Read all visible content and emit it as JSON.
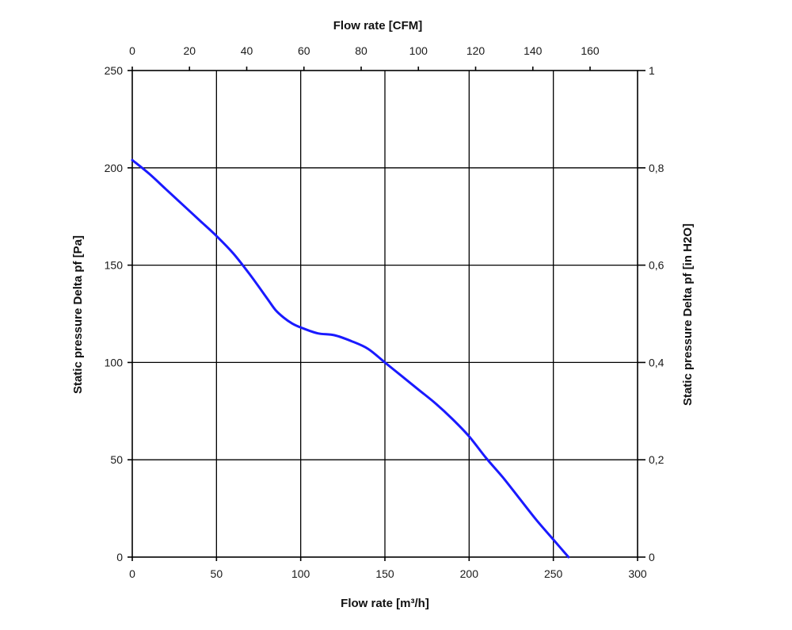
{
  "chart_data": {
    "type": "line",
    "x_bottom": {
      "label": "Flow rate [m³/h]",
      "range": [
        0,
        300
      ],
      "ticks": [
        0,
        50,
        100,
        150,
        200,
        250,
        300
      ],
      "tick_labels": [
        "0",
        "50",
        "100",
        "150",
        "200",
        "250",
        "300"
      ]
    },
    "x_top": {
      "label": "Flow rate [CFM]",
      "range": [
        0,
        176.6
      ],
      "ticks": [
        0,
        20,
        40,
        60,
        80,
        100,
        120,
        140,
        160
      ],
      "tick_labels": [
        "0",
        "20",
        "40",
        "60",
        "80",
        "100",
        "120",
        "140",
        "160"
      ]
    },
    "y_left": {
      "label": "Static pressure Delta pf [Pa]",
      "range": [
        0,
        250
      ],
      "ticks": [
        0,
        50,
        100,
        150,
        200,
        250
      ],
      "tick_labels": [
        "0",
        "50",
        "100",
        "150",
        "200",
        "250"
      ]
    },
    "y_right": {
      "label": "Static pressure Delta pf [in H2O]",
      "range": [
        0,
        1.0
      ],
      "ticks": [
        0,
        0.2,
        0.4,
        0.6,
        0.8,
        1.0
      ],
      "tick_labels": [
        "0",
        "0,2",
        "0,4",
        "0,6",
        "0,8",
        "1"
      ]
    },
    "grid": true,
    "series": [
      {
        "color": "#1a1aff",
        "x": [
          0,
          10,
          20,
          30,
          40,
          50,
          60,
          70,
          80,
          85,
          90,
          95,
          100,
          110,
          120,
          130,
          140,
          150,
          160,
          170,
          180,
          190,
          200,
          210,
          220,
          230,
          240,
          250,
          255,
          259
        ],
        "y": [
          204,
          197,
          189,
          181,
          173,
          165,
          156,
          145,
          133,
          127,
          123,
          120,
          118,
          115,
          114,
          111,
          107,
          100,
          93,
          86,
          79,
          71,
          62,
          51,
          41,
          30,
          19,
          9,
          4,
          0
        ]
      }
    ]
  }
}
